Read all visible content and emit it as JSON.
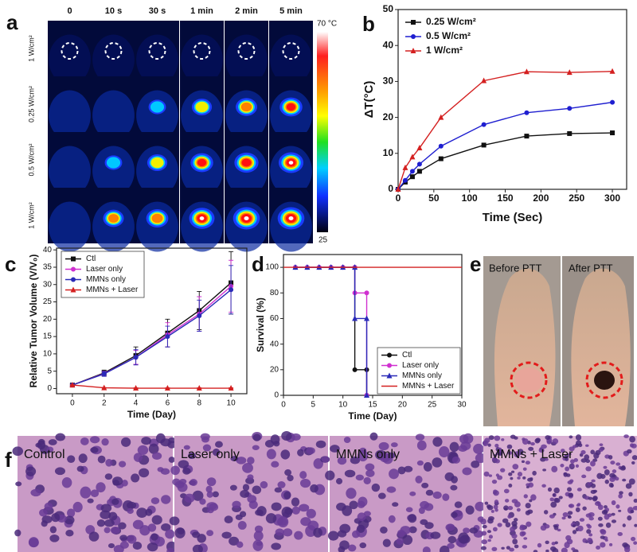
{
  "panel_labels": [
    "a",
    "b",
    "c",
    "d",
    "e",
    "f"
  ],
  "thermal": {
    "columns": [
      "0",
      "10 s",
      "30 s",
      "1 min",
      "2 min",
      "5 min"
    ],
    "rows": [
      "1 W/cm²",
      "0.25 W/cm²",
      "0.5 W/cm²",
      "1 W/cm²"
    ],
    "colorbar_max": "70 °C",
    "colorbar_min": "25"
  },
  "photos": {
    "before": "Before PTT",
    "after": "After PTT"
  },
  "histology": [
    "Control",
    "Laser only",
    "MMNs only",
    "MMNs + Laser"
  ],
  "chart_data": [
    {
      "type": "line",
      "xlabel": "Time (Sec)",
      "ylabel": "ΔT(°C)",
      "x": [
        0,
        10,
        20,
        30,
        60,
        120,
        180,
        240,
        300
      ],
      "series": [
        {
          "name": "0.25 W/cm²",
          "color": "#111111",
          "marker": "square",
          "values": [
            0,
            2,
            3.5,
            5,
            8.5,
            12.3,
            14.8,
            15.5,
            15.7
          ]
        },
        {
          "name": "0.5 W/cm²",
          "color": "#1f1fd0",
          "marker": "circle",
          "values": [
            0,
            2.5,
            5,
            7,
            12,
            18,
            21.3,
            22.5,
            24.2
          ]
        },
        {
          "name": "1 W/cm²",
          "color": "#d42020",
          "marker": "triangle",
          "values": [
            0,
            6,
            9,
            11.5,
            20,
            30.2,
            32.7,
            32.5,
            32.8
          ]
        }
      ],
      "xlim": [
        0,
        320
      ],
      "xticks": [
        0,
        50,
        100,
        150,
        200,
        250,
        300
      ],
      "ylim": [
        0,
        50
      ],
      "yticks": [
        0,
        10,
        20,
        30,
        40,
        50
      ],
      "legend": "upper left"
    },
    {
      "type": "line",
      "xlabel": "Time (Day)",
      "ylabel": "Relative Tumor Volume (V/V₀)",
      "x": [
        0,
        2,
        4,
        6,
        8,
        10
      ],
      "series": [
        {
          "name": "Ctl",
          "color": "#111111",
          "marker": "square",
          "values": [
            1,
            4.5,
            9.5,
            16,
            22.5,
            30.5
          ],
          "errors": [
            0.3,
            0.8,
            2.5,
            4,
            5.5,
            9
          ]
        },
        {
          "name": "Laser only",
          "color": "#d030d0",
          "marker": "circle",
          "values": [
            1,
            4.3,
            9,
            15.5,
            21.5,
            29.5
          ],
          "errors": [
            0.3,
            0.7,
            2,
            3.5,
            5,
            7.5
          ]
        },
        {
          "name": "MMNs only",
          "color": "#2a2ab8",
          "marker": "circle",
          "values": [
            1,
            4.2,
            9,
            15,
            21,
            28.5
          ],
          "errors": [
            0.3,
            0.7,
            2.2,
            3,
            4.5,
            7
          ]
        },
        {
          "name": "MMNs + Laser",
          "color": "#d42020",
          "marker": "triangle",
          "values": [
            1,
            0.2,
            0.1,
            0.1,
            0.1,
            0.1
          ],
          "errors": [
            0.1,
            0.1,
            0.1,
            0.1,
            0.1,
            0.1
          ]
        }
      ],
      "xlim": [
        -1,
        11
      ],
      "xticks": [
        0,
        2,
        4,
        6,
        8,
        10
      ],
      "ylim": [
        -1.5,
        40.5
      ],
      "yticks": [
        0,
        5,
        10,
        15,
        20,
        25,
        30,
        35,
        40
      ],
      "legend": "upper left"
    },
    {
      "type": "line",
      "xlabel": "Time (Day)",
      "ylabel": "Survival (%)",
      "series": [
        {
          "name": "Ctl",
          "color": "#111111",
          "marker": "circle",
          "x": [
            2,
            4,
            6,
            8,
            10,
            12,
            12,
            14,
            14
          ],
          "values": [
            100,
            100,
            100,
            100,
            100,
            100,
            20,
            20,
            0
          ]
        },
        {
          "name": "Laser only",
          "color": "#d030d0",
          "marker": "circle",
          "x": [
            2,
            4,
            6,
            8,
            10,
            12,
            12,
            14,
            14
          ],
          "values": [
            100,
            100,
            100,
            100,
            100,
            100,
            80,
            80,
            0
          ]
        },
        {
          "name": "MMNs only",
          "color": "#2a2ab8",
          "marker": "triangle",
          "x": [
            2,
            4,
            6,
            8,
            10,
            12,
            12,
            14,
            14
          ],
          "values": [
            100,
            100,
            100,
            100,
            100,
            100,
            60,
            60,
            0
          ]
        },
        {
          "name": "MMNs + Laser",
          "color": "#d42020",
          "marker": "none",
          "x": [
            0,
            30
          ],
          "values": [
            100,
            100
          ]
        }
      ],
      "xlim": [
        0,
        30
      ],
      "xticks": [
        0,
        5,
        10,
        15,
        20,
        25,
        30
      ],
      "ylim": [
        0,
        110
      ],
      "yticks": [
        0,
        20,
        40,
        60,
        80,
        100
      ],
      "legend": "lower right"
    }
  ]
}
